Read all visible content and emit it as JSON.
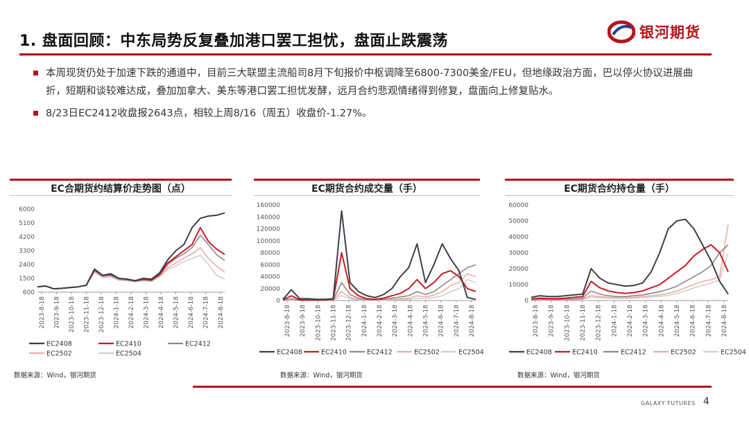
{
  "header": {
    "title": "1. 盘面回顾：中东局势反复叠加港口罢工担忧，盘面止跌震荡",
    "logo_text": "银河期货"
  },
  "bullets": [
    "本周现货仍处于加速下跌的通道中，目前三大联盟主流船司8月下旬报价中枢调降至6800-7300美金/FEU，但地缘政治方面，巴以停火协议进展曲折，短期和谈较难达成，叠加加拿大、美东等港口罢工担忧发酵，远月合约悲观情绪得到修复，盘面向上修复贴水。",
    "8/23日EC2412收盘报2643点，相较上周8/16（周五）收盘价-1.27%。"
  ],
  "colors": {
    "accent": "#b5151b",
    "EC2408": "#3a3f48",
    "EC2410": "#c81a22",
    "EC2412": "#8a8a8a",
    "EC2502": "#f2a9a9",
    "EC2504": "#cfcfcf"
  },
  "footer": {
    "brand": "GALAXY FUTURES",
    "page": "4"
  },
  "chart_data": [
    {
      "type": "line",
      "title": "EC合期货约结算价走势图（点）",
      "source": "数据来源：Wind，银河期货",
      "x_ticks": [
        "2023-8-18",
        "2023-9-18",
        "2023-10-18",
        "2023-11-18",
        "2023-12-18",
        "2024-1-18",
        "2024-2-18",
        "2024-3-18",
        "2024-4-18",
        "2024-5-18",
        "2024-6-18",
        "2024-7-18",
        "2024-8-18"
      ],
      "ylim": [
        600,
        6000
      ],
      "y_ticks": [
        600,
        1500,
        2400,
        3300,
        4200,
        5100,
        6000
      ],
      "legend_layout": "two-rows-three-columns",
      "series": [
        {
          "name": "EC2408",
          "values": [
            950,
            1000,
            820,
            850,
            900,
            950,
            1050,
            2100,
            1700,
            1800,
            1500,
            1450,
            1350,
            1500,
            1450,
            1850,
            2700,
            3300,
            3700,
            4800,
            5400,
            5550,
            5600,
            5750
          ]
        },
        {
          "name": "EC2410",
          "values": [
            950,
            1000,
            820,
            850,
            900,
            950,
            1050,
            2050,
            1700,
            1750,
            1500,
            1450,
            1350,
            1450,
            1400,
            1750,
            2500,
            2900,
            3300,
            3700,
            4800,
            3900,
            3400,
            3050
          ]
        },
        {
          "name": "EC2412",
          "values": [
            950,
            1000,
            820,
            850,
            900,
            950,
            1050,
            2000,
            1650,
            1700,
            1450,
            1400,
            1300,
            1400,
            1350,
            1700,
            2400,
            2800,
            3100,
            3500,
            4300,
            3700,
            3050,
            2650
          ]
        },
        {
          "name": "EC2502",
          "values": [
            950,
            1000,
            820,
            850,
            900,
            950,
            1050,
            1950,
            1600,
            1650,
            1400,
            1380,
            1300,
            1380,
            1330,
            1650,
            2200,
            2500,
            2800,
            3100,
            3500,
            2800,
            2300,
            1900
          ]
        },
        {
          "name": "EC2504",
          "values": [
            950,
            1000,
            820,
            850,
            900,
            950,
            1050,
            1900,
            1550,
            1600,
            1380,
            1350,
            1280,
            1350,
            1300,
            1600,
            2100,
            2300,
            2600,
            2800,
            3000,
            2400,
            1700,
            1450
          ]
        }
      ]
    },
    {
      "type": "line",
      "title": "EC期货合约成交量（手）",
      "source": "数据来源：Wind，银河期货",
      "x_ticks": [
        "2023-8-18",
        "2023-9-18",
        "2023-10-18",
        "2023-11-18",
        "2023-12-18",
        "2024-1-18",
        "2024-2-18",
        "2024-3-18",
        "2024-4-18",
        "2024-5-18",
        "2024-6-18",
        "2024-7-18",
        "2024-8-18"
      ],
      "ylim": [
        0,
        160000
      ],
      "y_ticks": [
        0,
        20000,
        40000,
        60000,
        80000,
        100000,
        120000,
        140000,
        160000
      ],
      "legend_layout": "one-row",
      "series": [
        {
          "name": "EC2408",
          "values": [
            2000,
            18000,
            3000,
            3000,
            2000,
            2000,
            3000,
            150000,
            30000,
            15000,
            8000,
            5000,
            10000,
            20000,
            40000,
            55000,
            95000,
            30000,
            60000,
            95000,
            70000,
            50000,
            5000,
            2000
          ]
        },
        {
          "name": "EC2410",
          "values": [
            1000,
            8000,
            1000,
            1000,
            1000,
            1000,
            2000,
            80000,
            20000,
            8000,
            3000,
            2000,
            4000,
            8000,
            12000,
            20000,
            35000,
            20000,
            30000,
            45000,
            50000,
            40000,
            20000,
            15000
          ]
        },
        {
          "name": "EC2412",
          "values": [
            500,
            3000,
            500,
            500,
            500,
            500,
            1000,
            30000,
            10000,
            4000,
            1500,
            1000,
            2000,
            4000,
            6000,
            8000,
            15000,
            10000,
            15000,
            25000,
            35000,
            45000,
            55000,
            60000
          ]
        },
        {
          "name": "EC2502",
          "values": [
            200,
            1000,
            200,
            200,
            200,
            200,
            500,
            15000,
            5000,
            2000,
            800,
            500,
            1000,
            2000,
            3000,
            4000,
            8000,
            6000,
            9000,
            15000,
            25000,
            30000,
            45000,
            40000
          ]
        },
        {
          "name": "EC2504",
          "values": [
            100,
            500,
            100,
            100,
            100,
            100,
            300,
            8000,
            3000,
            1000,
            500,
            300,
            500,
            1000,
            1500,
            2000,
            4000,
            3000,
            5000,
            8000,
            15000,
            20000,
            35000,
            30000
          ]
        }
      ]
    },
    {
      "type": "line",
      "title": "EC期货合约持仓量（手）",
      "source": "数据来源：Wind，银河期货",
      "x_ticks": [
        "2023-8-18",
        "2023-9-18",
        "2023-10-18",
        "2023-11-18",
        "2023-12-18",
        "2024-1-18",
        "2024-2-18",
        "2024-3-18",
        "2024-4-18",
        "2024-5-18",
        "2024-6-18",
        "2024-7-18",
        "2024-8-18"
      ],
      "ylim": [
        0,
        60000
      ],
      "y_ticks": [
        0,
        10000,
        20000,
        30000,
        40000,
        50000,
        60000
      ],
      "legend_layout": "one-row",
      "series": [
        {
          "name": "EC2408",
          "values": [
            2000,
            3000,
            2500,
            2500,
            3000,
            3500,
            4000,
            20000,
            14000,
            11000,
            10000,
            9000,
            9500,
            11000,
            18000,
            30000,
            45000,
            50000,
            51000,
            45000,
            35000,
            25000,
            12000,
            4000
          ]
        },
        {
          "name": "EC2410",
          "values": [
            1000,
            1500,
            1200,
            1200,
            1500,
            2000,
            2500,
            12000,
            8000,
            6000,
            5000,
            4500,
            5000,
            6000,
            8000,
            10000,
            14000,
            18000,
            22000,
            28000,
            32000,
            35000,
            30000,
            18000
          ]
        },
        {
          "name": "EC2412",
          "values": [
            500,
            800,
            600,
            600,
            800,
            1000,
            1500,
            6000,
            4000,
            3000,
            2500,
            2500,
            3000,
            3500,
            4500,
            5500,
            7000,
            9000,
            12000,
            15000,
            18000,
            22000,
            30000,
            35000
          ]
        },
        {
          "name": "EC2502",
          "values": [
            300,
            500,
            400,
            400,
            500,
            700,
            1000,
            3000,
            2500,
            2000,
            1800,
            1800,
            2000,
            2500,
            3000,
            3500,
            4500,
            6000,
            8000,
            10000,
            12000,
            13000,
            15000,
            48000
          ]
        },
        {
          "name": "EC2504",
          "values": [
            200,
            300,
            300,
            300,
            400,
            500,
            700,
            2000,
            1800,
            1500,
            1400,
            1400,
            1500,
            1800,
            2200,
            2600,
            3200,
            4500,
            6000,
            8000,
            9500,
            11000,
            13000,
            30000
          ]
        }
      ]
    }
  ]
}
